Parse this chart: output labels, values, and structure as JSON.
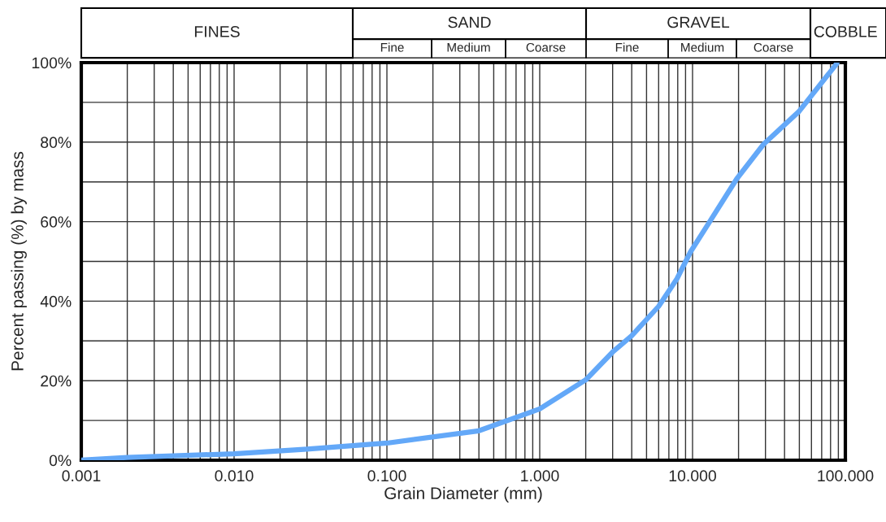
{
  "chart_data": {
    "type": "line",
    "xlabel": "Grain Diameter (mm)",
    "ylabel": "Percent passing (%) by mass",
    "log": "x",
    "xlim": [
      0.001,
      100
    ],
    "ylim": [
      0,
      100
    ],
    "xticks": [
      {
        "value": 0.001,
        "label": "0.001"
      },
      {
        "value": 0.01,
        "label": "0.010"
      },
      {
        "value": 0.1,
        "label": "0.100"
      },
      {
        "value": 1,
        "label": "1.000"
      },
      {
        "value": 10,
        "label": "10.000"
      },
      {
        "value": 100,
        "label": "100.000"
      }
    ],
    "yticks": [
      {
        "value": 0,
        "label": "0%"
      },
      {
        "value": 10,
        "label": null
      },
      {
        "value": 20,
        "label": "20%"
      },
      {
        "value": 30,
        "label": null
      },
      {
        "value": 40,
        "label": "40%"
      },
      {
        "value": 50,
        "label": null
      },
      {
        "value": 60,
        "label": "60%"
      },
      {
        "value": 70,
        "label": null
      },
      {
        "value": 80,
        "label": "80%"
      },
      {
        "value": 90,
        "label": null
      },
      {
        "value": 100,
        "label": "100%"
      }
    ],
    "grid": true,
    "marker": "none",
    "line_style": "solid",
    "series": [
      {
        "color": "#63a8f8",
        "x": [
          0.001,
          0.002,
          0.01,
          0.03,
          0.1,
          0.4,
          1.0,
          2.0,
          3.0,
          4.0,
          6.0,
          7.9,
          9.7,
          12.9,
          19.5,
          29.2,
          49.7,
          88
        ],
        "values": [
          0,
          0.7,
          1.6,
          2.8,
          4.3,
          7.4,
          12.9,
          20.2,
          27.2,
          31.3,
          38.7,
          45.6,
          52.4,
          59.9,
          70.8,
          79.5,
          87.7,
          99.8
        ]
      }
    ],
    "annotations": [
      "FINES",
      "SAND",
      "Fine",
      "Medium",
      "Coarse",
      "GRAVEL",
      "Fine",
      "Medium",
      "Coarse",
      "COBBLE"
    ]
  }
}
